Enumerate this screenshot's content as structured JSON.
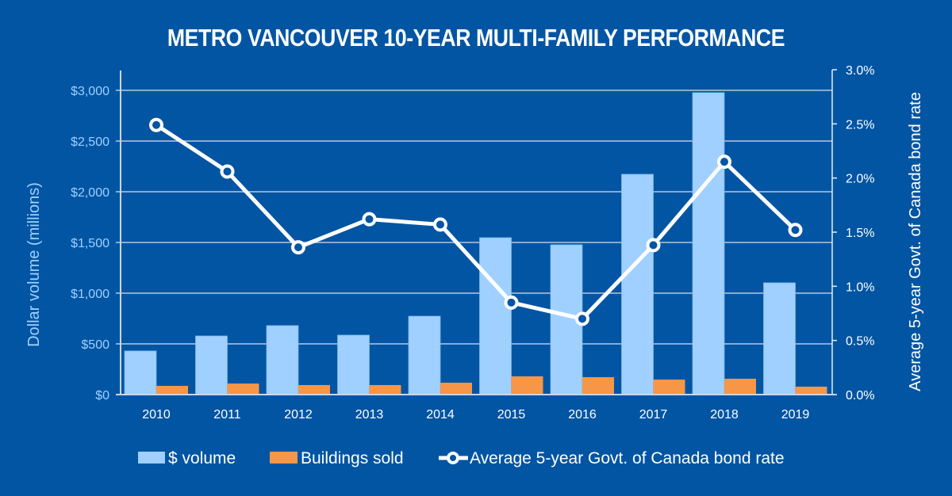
{
  "chart_data": {
    "type": "bar",
    "title": "METRO VANCOUVER 10-YEAR MULTI-FAMILY PERFORMANCE",
    "categories": [
      "2010",
      "2011",
      "2012",
      "2013",
      "2014",
      "2015",
      "2016",
      "2017",
      "2018",
      "2019"
    ],
    "series": [
      {
        "name": "$ volume",
        "type": "bar",
        "axis": "left",
        "color": "#9fd0ff",
        "values": [
          430,
          578,
          680,
          586,
          773,
          1547,
          1477,
          2172,
          2977,
          1102
        ]
      },
      {
        "name": "Buildings sold",
        "type": "bar",
        "axis": "left",
        "color": "#f79646",
        "values": [
          86,
          109,
          94,
          94,
          117,
          180,
          172,
          148,
          156,
          78
        ]
      },
      {
        "name": "Average 5-year Govt. of Canada bond rate",
        "type": "line",
        "axis": "right",
        "color": "#ffffff",
        "values": [
          2.49,
          2.06,
          1.36,
          1.62,
          1.57,
          0.85,
          0.7,
          1.38,
          2.15,
          1.52
        ]
      }
    ],
    "ylabel": "Dollar volume (millions)",
    "ylabel_right": "Average 5-year Govt. of Canada bond rate",
    "xlabel": "",
    "ylim": [
      0,
      3000
    ],
    "ylim_right": [
      0,
      3.0
    ],
    "yticks": [
      "$0",
      "$500",
      "$1,000",
      "$1,500",
      "$2,000",
      "$2,500",
      "$3,000"
    ],
    "yticks_right": [
      "0.0%",
      "0.5%",
      "1.0%",
      "1.5%",
      "2.0%",
      "2.5%",
      "3.0%"
    ],
    "grid": true,
    "legend_position": "bottom"
  },
  "colors": {
    "background": "#0255a3",
    "volume": "#9fd0ff",
    "buildings": "#f79646",
    "line": "#ffffff",
    "grid": "#b8c8dc"
  }
}
